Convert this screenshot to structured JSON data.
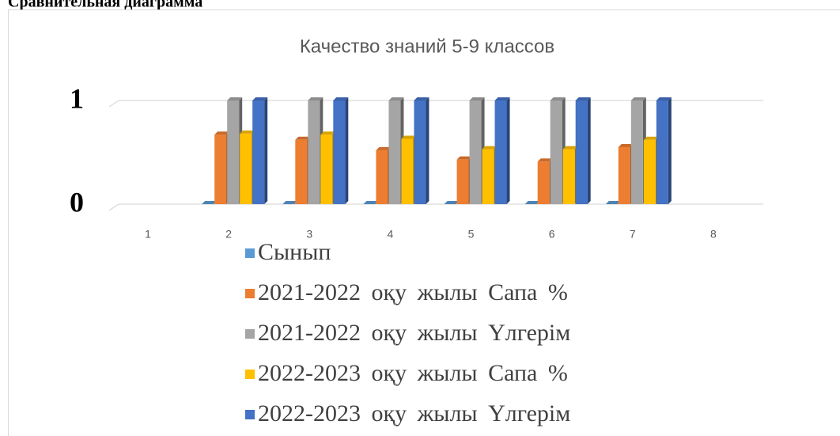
{
  "heading": "Сравнительная диаграмма",
  "chart_data": {
    "type": "bar3d",
    "title": "Качество знаний 5-9 классов",
    "categories": [
      "1",
      "2",
      "3",
      "4",
      "5",
      "6",
      "7",
      "8"
    ],
    "series": [
      {
        "name": "Сынып",
        "color": "#5B9BD5",
        "values": [
          null,
          0,
          0,
          0,
          0,
          0,
          0,
          null
        ]
      },
      {
        "name": "2021-2022 оқу жылы Сапа %",
        "color": "#ED7D31",
        "values": [
          null,
          0.67,
          0.62,
          0.52,
          0.43,
          0.41,
          0.55,
          null
        ]
      },
      {
        "name": "2021-2022 оқу жылы Үлгерім",
        "color": "#A5A5A5",
        "values": [
          null,
          1,
          1,
          1,
          1,
          1,
          1,
          null
        ]
      },
      {
        "name": "2022-2023 оқу жылы Сапа %",
        "color": "#FFC000",
        "values": [
          null,
          0.68,
          0.67,
          0.63,
          0.53,
          0.53,
          0.62,
          null
        ]
      },
      {
        "name": "2022-2023 оқу жылы Үлгерім",
        "color": "#4472C4",
        "values": [
          null,
          1,
          1,
          1,
          1,
          1,
          1,
          null
        ]
      }
    ],
    "ylim": [
      0,
      1
    ],
    "yticks": [
      0,
      1
    ],
    "grid": true,
    "legend": "bottom"
  }
}
